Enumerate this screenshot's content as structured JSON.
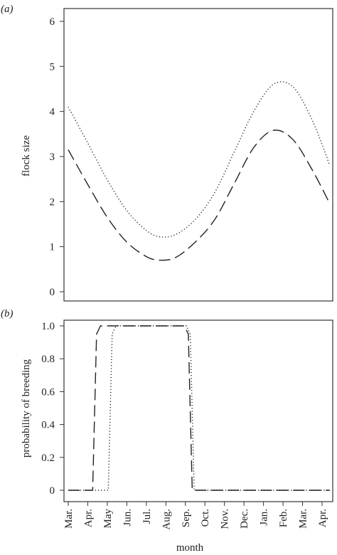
{
  "chart_data": [
    {
      "panel": "(a)",
      "type": "line",
      "xlabel": "",
      "ylabel": "flock size",
      "xlim": [
        0,
        13.4
      ],
      "ylim": [
        0,
        6
      ],
      "yticks": [
        0,
        1,
        2,
        3,
        4,
        5,
        6
      ],
      "series": [
        {
          "style": "dotted",
          "x": [
            0,
            1,
            2,
            3,
            4,
            4.7,
            5.5,
            6.5,
            7.5,
            8.5,
            9.5,
            10.5,
            11.5,
            12.5,
            13.4
          ],
          "y": [
            4.1,
            3.3,
            2.48,
            1.8,
            1.36,
            1.22,
            1.27,
            1.6,
            2.2,
            3.1,
            4.0,
            4.6,
            4.55,
            3.8,
            2.8
          ]
        },
        {
          "style": "dashed",
          "x": [
            0,
            1,
            2,
            3,
            4,
            4.7,
            5.5,
            6.5,
            7.5,
            8.5,
            9.5,
            10.5,
            11.5,
            12.5,
            13.4
          ],
          "y": [
            3.15,
            2.38,
            1.65,
            1.1,
            0.78,
            0.7,
            0.76,
            1.1,
            1.6,
            2.4,
            3.2,
            3.58,
            3.38,
            2.7,
            1.95
          ]
        }
      ]
    },
    {
      "panel": "(b)",
      "type": "line",
      "xlabel": "month",
      "ylabel": "probability of breeding",
      "xlim": [
        0,
        13.4
      ],
      "ylim": [
        0,
        1
      ],
      "yticks": [
        "0",
        "0.2",
        "0.4",
        "0.6",
        "0.8",
        "1.0"
      ],
      "categories": [
        "Mar.",
        "Apr.",
        "May",
        "Jun.",
        "Jul.",
        "Aug.",
        "Sep.",
        "Oct.",
        "Nov.",
        "Dec.",
        "Jan.",
        "Feb.",
        "Mar.",
        "Apr."
      ],
      "series": [
        {
          "style": "dashed",
          "x": [
            0,
            1.25,
            1.45,
            1.65,
            5.95,
            6.15,
            6.35,
            13.4
          ],
          "y": [
            0,
            0,
            0.95,
            1,
            1,
            0.95,
            0,
            0
          ]
        },
        {
          "style": "dotted",
          "x": [
            0,
            2.05,
            2.25,
            2.45,
            6.05,
            6.25,
            6.45,
            13.4
          ],
          "y": [
            0,
            0,
            0.95,
            1,
            1,
            0.95,
            0,
            0
          ]
        }
      ]
    }
  ]
}
